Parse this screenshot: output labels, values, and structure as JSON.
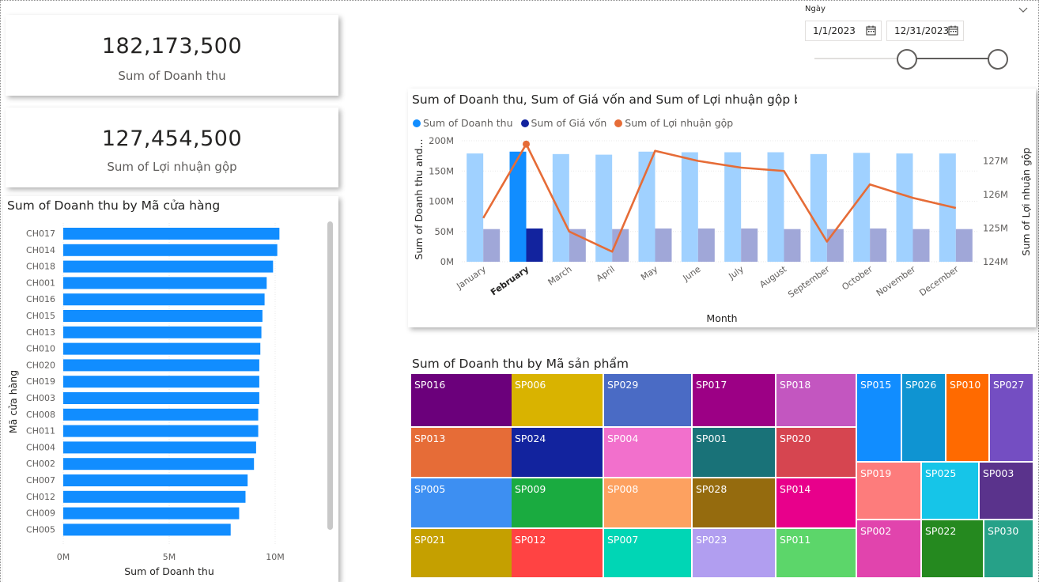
{
  "kpi": {
    "revenue": {
      "value": "182,173,500",
      "label": "Sum of Doanh thu"
    },
    "profit": {
      "value": "127,454,500",
      "label": "Sum of Lợi nhuận gộp"
    }
  },
  "slicer": {
    "title": "Ngày",
    "start": "1/1/2023",
    "end": "12/31/2023",
    "calendar_icon": "calendar-icon",
    "collapse_icon": "chevron-down-icon"
  },
  "colors": {
    "revenue": "#118dff",
    "cost": "#12239e",
    "profit": "#e66c37",
    "revenue_faded": "#a0d1ff",
    "cost_faded": "#a0a7d8"
  },
  "bar_chart": {
    "title": "Sum of Doanh thu by Mã cửa hàng",
    "xlabel": "Sum of Doanh thu",
    "ylabel": "Mã cửa hàng",
    "ticks": [
      "0M",
      "5M",
      "10M"
    ]
  },
  "combo": {
    "title": "Sum of Doanh thu, Sum of Giá vốn and Sum of Lợi nhuận gộp by",
    "legend": [
      "Sum of Doanh thu",
      "Sum of Giá vốn",
      "Sum of Lợi nhuận gộp"
    ],
    "xlabel": "Month",
    "ylabel_left": "Sum of Doanh thu and...",
    "ylabel_right": "Sum of Lợi nhuận gộp",
    "left_ticks": [
      "0M",
      "50M",
      "100M",
      "150M",
      "200M"
    ],
    "right_ticks": [
      "124M",
      "125M",
      "126M",
      "127M"
    ]
  },
  "treemap": {
    "title": "Sum of Doanh thu by Mã sản phẩm",
    "tiles": [
      "SP016",
      "SP006",
      "SP029",
      "SP017",
      "SP018",
      "SP013",
      "SP024",
      "SP004",
      "SP001",
      "SP020",
      "SP005",
      "SP009",
      "SP008",
      "SP028",
      "SP014",
      "SP021",
      "SP012",
      "SP007",
      "SP023",
      "SP011",
      "SP015",
      "SP026",
      "SP010",
      "SP027",
      "SP019",
      "SP025",
      "SP003",
      "SP002",
      "SP022",
      "SP030"
    ]
  },
  "chart_data": [
    {
      "type": "bar",
      "orientation": "horizontal",
      "title": "Sum of Doanh thu by Mã cửa hàng",
      "categories": [
        "CH017",
        "CH014",
        "CH018",
        "CH001",
        "CH016",
        "CH015",
        "CH013",
        "CH010",
        "CH020",
        "CH019",
        "CH003",
        "CH008",
        "CH011",
        "CH004",
        "CH002",
        "CH007",
        "CH012",
        "CH009",
        "CH005"
      ],
      "values": [
        10.2,
        10.1,
        9.9,
        9.6,
        9.5,
        9.4,
        9.35,
        9.3,
        9.25,
        9.25,
        9.25,
        9.2,
        9.2,
        9.1,
        9.0,
        8.7,
        8.6,
        8.3,
        7.9
      ],
      "unit": "M",
      "xlabel": "Sum of Doanh thu",
      "ylabel": "Mã cửa hàng",
      "xlim": [
        0,
        10.5
      ]
    },
    {
      "type": "bar+line",
      "title": "Sum of Doanh thu, Sum of Giá vốn and Sum of Lợi nhuận gộp by Month",
      "categories": [
        "January",
        "February",
        "March",
        "April",
        "May",
        "June",
        "July",
        "August",
        "September",
        "October",
        "November",
        "December"
      ],
      "highlighted": "February",
      "series": [
        {
          "name": "Sum of Doanh thu",
          "axis": "left",
          "kind": "bar",
          "values": [
            179,
            182,
            178,
            177,
            182,
            181,
            181,
            181,
            178,
            180,
            179,
            179
          ]
        },
        {
          "name": "Sum of Giá vốn",
          "axis": "left",
          "kind": "bar",
          "values": [
            54,
            55,
            54,
            54,
            55,
            55,
            55,
            54,
            54,
            55,
            54,
            54
          ]
        },
        {
          "name": "Sum of Lợi nhuận gộp",
          "axis": "right",
          "kind": "line",
          "values": [
            125.3,
            127.5,
            124.9,
            124.3,
            127.3,
            127.0,
            126.8,
            126.7,
            124.6,
            126.3,
            125.9,
            125.6
          ]
        }
      ],
      "ylim_left": [
        0,
        200
      ],
      "ylim_right": [
        124,
        127.6
      ],
      "unit": "M",
      "xlabel": "Month"
    },
    {
      "type": "treemap",
      "title": "Sum of Doanh thu by Mã sản phẩm",
      "categories": [
        "SP016",
        "SP006",
        "SP029",
        "SP017",
        "SP018",
        "SP013",
        "SP024",
        "SP004",
        "SP001",
        "SP020",
        "SP005",
        "SP009",
        "SP008",
        "SP028",
        "SP014",
        "SP021",
        "SP012",
        "SP007",
        "SP023",
        "SP011",
        "SP015",
        "SP026",
        "SP010",
        "SP027",
        "SP019",
        "SP025",
        "SP003",
        "SP002",
        "SP022",
        "SP030"
      ]
    }
  ]
}
